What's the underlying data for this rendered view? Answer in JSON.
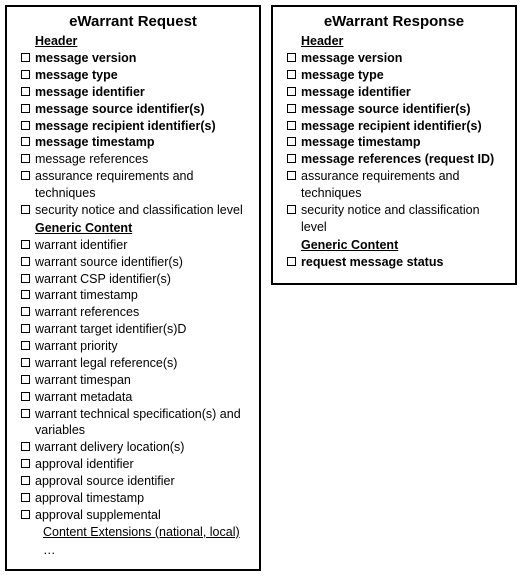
{
  "colors": {
    "border": "#000000",
    "background": "#ffffff",
    "text": "#000000"
  },
  "typography": {
    "title_fontsize": 15,
    "heading_fontsize": 12.5,
    "item_fontsize": 12.5,
    "font_family": "Arial, Helvetica, sans-serif"
  },
  "request": {
    "title": "eWarrant Request",
    "sections": [
      {
        "heading": "Header",
        "items": [
          {
            "text": "message version",
            "bold": true
          },
          {
            "text": "message type",
            "bold": true
          },
          {
            "text": "message identifier",
            "bold": true
          },
          {
            "text": "message source identifier(s)",
            "bold": true
          },
          {
            "text": "message recipient identifier(s)",
            "bold": true
          },
          {
            "text": "message timestamp",
            "bold": true
          },
          {
            "text": "message references",
            "bold": false
          },
          {
            "text": "assurance requirements and techniques",
            "bold": false
          },
          {
            "text": "security notice and classification level",
            "bold": false
          }
        ]
      },
      {
        "heading": "Generic Content",
        "items": [
          {
            "text": "warrant identifier",
            "bold": false
          },
          {
            "text": "warrant source identifier(s)",
            "bold": false
          },
          {
            "text": "warrant CSP identifier(s)",
            "bold": false
          },
          {
            "text": "warrant timestamp",
            "bold": false
          },
          {
            "text": "warrant references",
            "bold": false
          },
          {
            "text": "warrant target identifier(s)D",
            "bold": false
          },
          {
            "text": "warrant priority",
            "bold": false
          },
          {
            "text": "warrant legal reference(s)",
            "bold": false
          },
          {
            "text": "warrant timespan",
            "bold": false
          },
          {
            "text": "warrant metadata",
            "bold": false
          },
          {
            "text": "warrant technical specification(s) and variables",
            "bold": false
          },
          {
            "text": "warrant delivery location(s)",
            "bold": false
          },
          {
            "text": "approval identifier",
            "bold": false
          },
          {
            "text": "approval source identifier",
            "bold": false
          },
          {
            "text": "approval timestamp",
            "bold": false
          },
          {
            "text": "approval supplemental",
            "bold": false
          }
        ]
      }
    ],
    "extension_heading": "Content Extensions (national, local)",
    "dots": "…"
  },
  "response": {
    "title": "eWarrant Response",
    "sections": [
      {
        "heading": "Header",
        "items": [
          {
            "text": "message version",
            "bold": true
          },
          {
            "text": "message type",
            "bold": true
          },
          {
            "text": "message identifier",
            "bold": true
          },
          {
            "text": "message source identifier(s)",
            "bold": true
          },
          {
            "text": "message recipient identifier(s)",
            "bold": true
          },
          {
            "text": "message timestamp",
            "bold": true
          },
          {
            "text": "message references (request ID)",
            "bold": true
          },
          {
            "text": "assurance requirements and techniques",
            "bold": false
          },
          {
            "text": "security notice and classification level",
            "bold": false
          }
        ]
      },
      {
        "heading": "Generic Content",
        "items": [
          {
            "text": "request message status",
            "bold": true
          }
        ]
      }
    ]
  }
}
